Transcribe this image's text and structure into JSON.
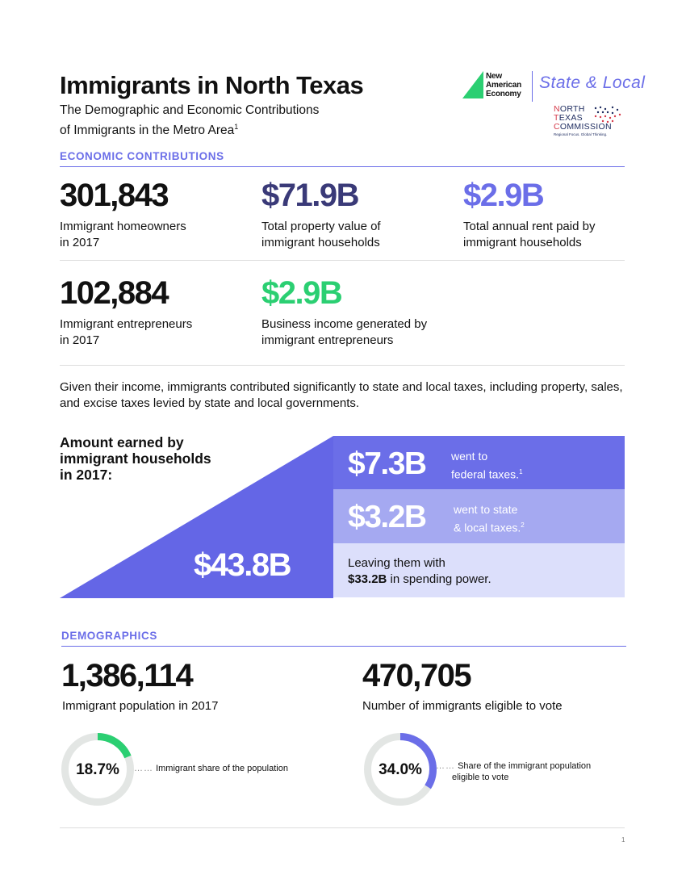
{
  "header": {
    "title": "Immigrants in North Texas",
    "subtitle_line1": "The Demographic and Economic Contributions",
    "subtitle_line2": "of Immigrants in the Metro Area",
    "subtitle_sup": "1"
  },
  "logos": {
    "nae_line1": "New",
    "nae_line2": "American",
    "nae_line3": "Economy",
    "state_local": "State & Local",
    "ntc_line1_first": "N",
    "ntc_line1_rest": "ORTH",
    "ntc_line2_first": "T",
    "ntc_line2_rest": "EXAS",
    "ntc_line3_first": "C",
    "ntc_line3_rest": "OMMISSION",
    "ntc_tagline": "Regional Focus. Global Thinking."
  },
  "economic": {
    "heading": "ECONOMIC CONTRIBUTIONS",
    "stats": [
      {
        "value": "301,843",
        "label_line1": "Immigrant homeowners",
        "label_line2": "in 2017",
        "color": "#111111"
      },
      {
        "value": "$71.9B",
        "label_line1": "Total property value of",
        "label_line2": "immigrant households",
        "color": "#3a3a78"
      },
      {
        "value": "$2.9B",
        "label_line1": "Total annual rent paid by",
        "label_line2": "immigrant households",
        "color": "#6b6ee8"
      },
      {
        "value": "102,884",
        "label_line1": "Immigrant entrepreneurs",
        "label_line2": "in 2017",
        "color": "#111111"
      },
      {
        "value": "$2.9B",
        "label_line1": "Business income generated by",
        "label_line2": "immigrant entrepreneurs",
        "color": "#2bcf72"
      }
    ],
    "paragraph": "Given their income, immigrants contributed significantly to state and local taxes, including property, sales, and excise taxes levied by state and local governments."
  },
  "earnings": {
    "label_line1": "Amount earned by",
    "label_line2": "immigrant households",
    "label_line3": "in 2017:",
    "total": "$43.8B",
    "federal_value": "$7.3B",
    "federal_text_line1": "went to",
    "federal_text_line2": "federal taxes.",
    "federal_sup": "1",
    "state_value": "$3.2B",
    "state_text_line1": "went to state",
    "state_text_line2": "& local taxes.",
    "state_sup": "2",
    "leaving_line1": "Leaving them with",
    "leaving_bold": "$33.2B",
    "leaving_rest": " in spending power."
  },
  "demographics": {
    "heading": "DEMOGRAPHICS",
    "population_value": "1,386,114",
    "population_label": "Immigrant population in 2017",
    "eligible_value": "470,705",
    "eligible_label": "Number of immigrants eligible to vote",
    "share_percent": 18.7,
    "share_text": "18.7%",
    "share_desc": "Immigrant share of the population",
    "share_color": "#2bcf72",
    "vote_percent": 34.0,
    "vote_text": "34.0%",
    "vote_desc_line1": "Share of the immigrant population",
    "vote_desc_line2": "eligible to vote",
    "vote_color": "#6b6ee8",
    "dots": "……"
  },
  "footer": {
    "page_number": "1"
  },
  "colors": {
    "accent": "#6b6ee8",
    "green": "#2bcf72",
    "navy": "#3a3a78",
    "ring_track": "#e3e6e4"
  }
}
